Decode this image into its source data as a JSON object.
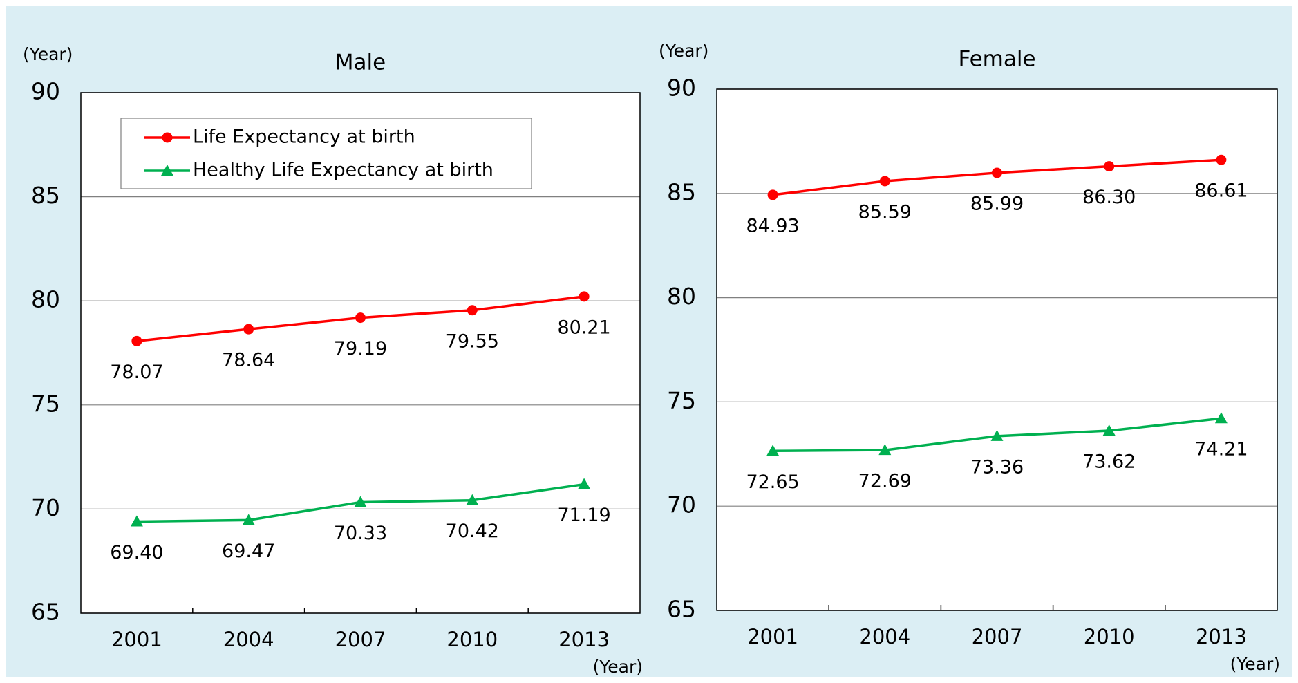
{
  "chart_data": [
    {
      "type": "line",
      "title": "Male",
      "y_label": "(Year)",
      "x_label": "(Year)",
      "categories": [
        "2001",
        "2004",
        "2007",
        "2010",
        "2013"
      ],
      "series": [
        {
          "name": "Life Expectancy at birth",
          "color": "#ff0000",
          "marker": "circle",
          "values": [
            78.07,
            78.64,
            79.19,
            79.55,
            80.21
          ],
          "value_labels": [
            "78.07",
            "78.64",
            "79.19",
            "79.55",
            "80.21"
          ]
        },
        {
          "name": "Healthy Life Expectancy at birth",
          "color": "#00b050",
          "marker": "triangle",
          "values": [
            69.4,
            69.47,
            70.33,
            70.42,
            71.19
          ],
          "value_labels": [
            "69.40",
            "69.47",
            "70.33",
            "70.42",
            "71.19"
          ]
        }
      ],
      "ylim": [
        65,
        90
      ],
      "yticks": [
        65,
        70,
        75,
        80,
        85,
        90
      ],
      "grid": true,
      "legend": "upper left"
    },
    {
      "type": "line",
      "title": "Female",
      "y_label": "(Year)",
      "x_label": "(Year)",
      "categories": [
        "2001",
        "2004",
        "2007",
        "2010",
        "2013"
      ],
      "series": [
        {
          "color": "#ff0000",
          "marker": "circle",
          "values": [
            84.93,
            85.59,
            85.99,
            86.3,
            86.61
          ],
          "value_labels": [
            "84.93",
            "85.59",
            "85.99",
            "86.30",
            "86.61"
          ]
        },
        {
          "color": "#00b050",
          "marker": "triangle",
          "values": [
            72.65,
            72.69,
            73.36,
            73.62,
            74.21
          ],
          "value_labels": [
            "72.65",
            "72.69",
            "73.36",
            "73.62",
            "74.21"
          ]
        }
      ],
      "ylim": [
        65,
        90
      ],
      "yticks": [
        65,
        70,
        75,
        80,
        85,
        90
      ],
      "grid": true
    }
  ]
}
